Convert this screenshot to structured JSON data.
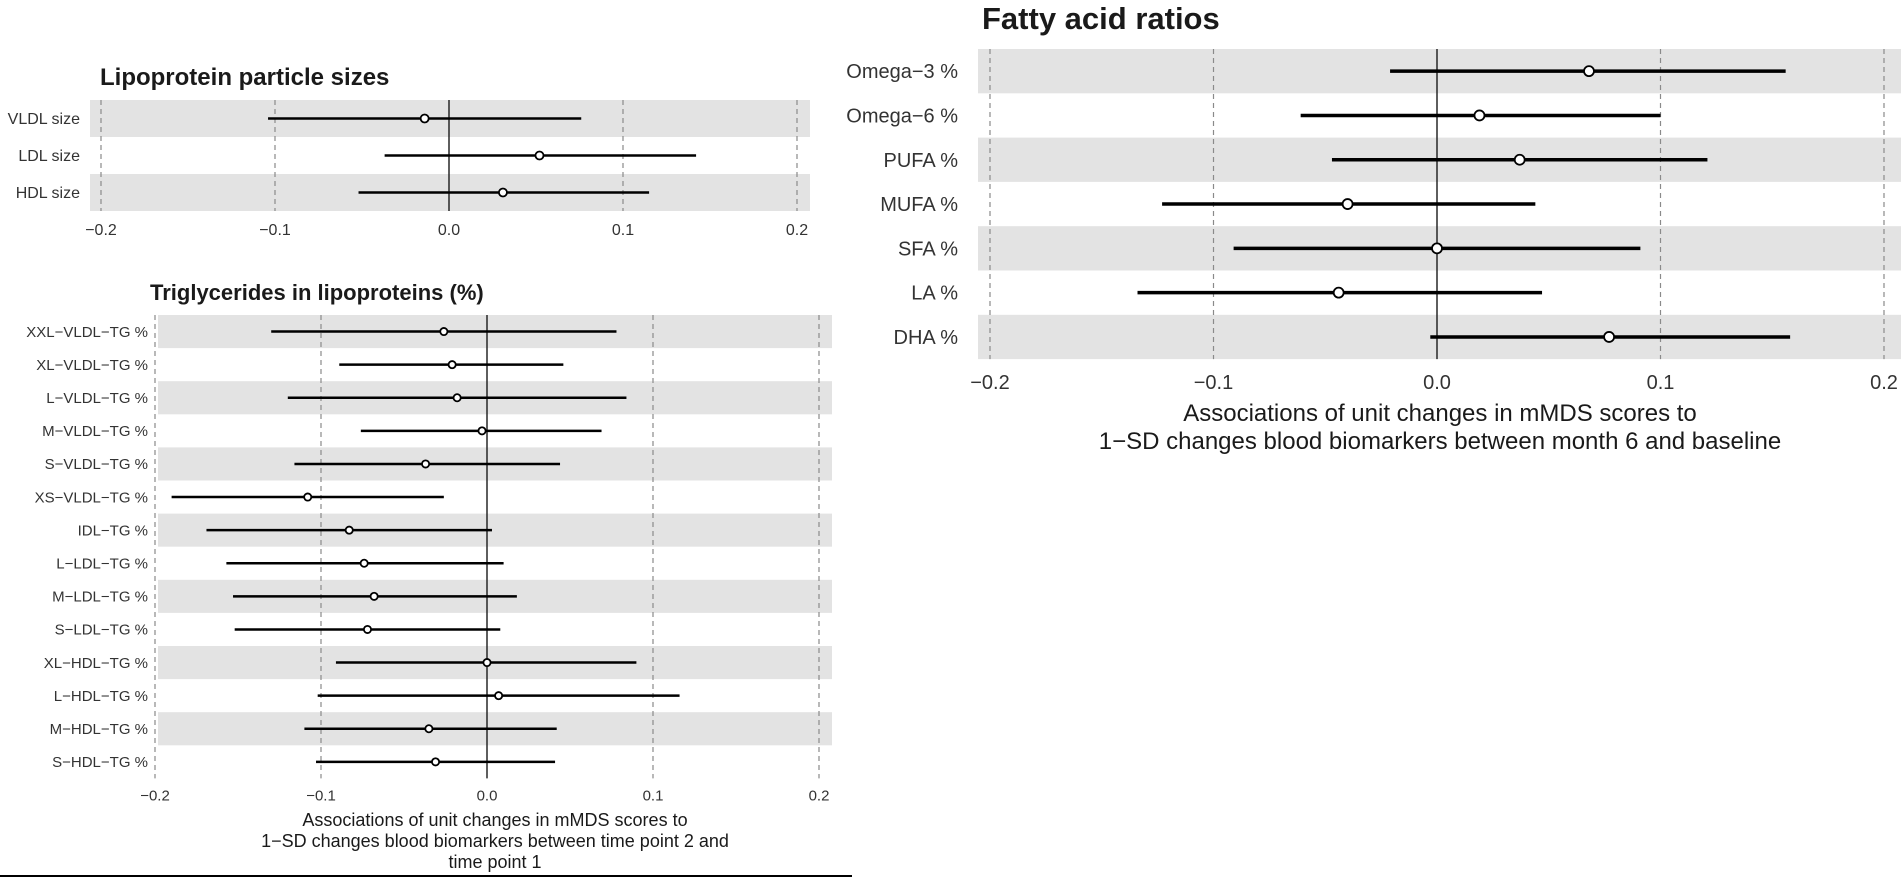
{
  "chart_data": [
    {
      "id": "lipoprotein_sizes",
      "type": "forest",
      "title": "Lipoprotein particle sizes",
      "xlabel": "",
      "xlim": [
        -0.21,
        0.21
      ],
      "xticks": [
        -0.2,
        -0.1,
        0.0,
        0.1,
        0.2
      ],
      "xtick_labels": [
        "−0.2",
        "−0.1",
        "0.0",
        "0.1",
        "0.2"
      ],
      "grid": "vertical dashed",
      "rows": [
        {
          "label": "VLDL size",
          "est": -0.014,
          "lo": -0.104,
          "hi": 0.076
        },
        {
          "label": "LDL size",
          "est": 0.052,
          "lo": -0.037,
          "hi": 0.142
        },
        {
          "label": "HDL size",
          "est": 0.031,
          "lo": -0.052,
          "hi": 0.115
        }
      ]
    },
    {
      "id": "tg_in_lipoproteins",
      "type": "forest",
      "title": "Triglycerides in lipoproteins (%)",
      "xlabel": "Associations of unit changes in mMDS scores to\n1−SD changes blood biomarkers between time point 2 and\ntime point 1",
      "xlim": [
        -0.21,
        0.21
      ],
      "xticks": [
        -0.2,
        -0.1,
        0.0,
        0.1,
        0.2
      ],
      "xtick_labels": [
        "−0.2",
        "−0.1",
        "0.0",
        "0.1",
        "0.2"
      ],
      "grid": "vertical dashed",
      "rows": [
        {
          "label": "XXL−VLDL−TG %",
          "est": -0.026,
          "lo": -0.13,
          "hi": 0.078
        },
        {
          "label": "XL−VLDL−TG %",
          "est": -0.021,
          "lo": -0.089,
          "hi": 0.046
        },
        {
          "label": "L−VLDL−TG %",
          "est": -0.018,
          "lo": -0.12,
          "hi": 0.084
        },
        {
          "label": "M−VLDL−TG %",
          "est": -0.003,
          "lo": -0.076,
          "hi": 0.069
        },
        {
          "label": "S−VLDL−TG %",
          "est": -0.037,
          "lo": -0.116,
          "hi": 0.044
        },
        {
          "label": "XS−VLDL−TG %",
          "est": -0.108,
          "lo": -0.19,
          "hi": -0.026
        },
        {
          "label": "IDL−TG %",
          "est": -0.083,
          "lo": -0.169,
          "hi": 0.003
        },
        {
          "label": "L−LDL−TG %",
          "est": -0.074,
          "lo": -0.157,
          "hi": 0.01
        },
        {
          "label": "M−LDL−TG %",
          "est": -0.068,
          "lo": -0.153,
          "hi": 0.018
        },
        {
          "label": "S−LDL−TG %",
          "est": -0.072,
          "lo": -0.152,
          "hi": 0.008
        },
        {
          "label": "XL−HDL−TG %",
          "est": 0.0,
          "lo": -0.091,
          "hi": 0.09
        },
        {
          "label": "L−HDL−TG %",
          "est": 0.007,
          "lo": -0.102,
          "hi": 0.116
        },
        {
          "label": "M−HDL−TG %",
          "est": -0.035,
          "lo": -0.11,
          "hi": 0.042
        },
        {
          "label": "S−HDL−TG %",
          "est": -0.031,
          "lo": -0.103,
          "hi": 0.041
        }
      ]
    },
    {
      "id": "fatty_acid_ratios",
      "type": "forest",
      "title": "Fatty acid ratios",
      "xlabel": "Associations of unit changes in mMDS scores to\n1−SD changes blood biomarkers between month 6 and baseline",
      "xlim": [
        -0.21,
        0.21
      ],
      "xticks": [
        -0.2,
        -0.1,
        0.0,
        0.1,
        0.2
      ],
      "xtick_labels": [
        "−0.2",
        "−0.1",
        "0.0",
        "0.1",
        "0.2"
      ],
      "grid": "vertical dashed",
      "rows": [
        {
          "label": "Omega−3 %",
          "est": 0.068,
          "lo": -0.021,
          "hi": 0.156
        },
        {
          "label": "Omega−6 %",
          "est": 0.019,
          "lo": -0.061,
          "hi": 0.1
        },
        {
          "label": "PUFA %",
          "est": 0.037,
          "lo": -0.047,
          "hi": 0.121
        },
        {
          "label": "MUFA %",
          "est": -0.04,
          "lo": -0.123,
          "hi": 0.044
        },
        {
          "label": "SFA %",
          "est": 0.0,
          "lo": -0.091,
          "hi": 0.091
        },
        {
          "label": "LA %",
          "est": -0.044,
          "lo": -0.134,
          "hi": 0.047
        },
        {
          "label": "DHA %",
          "est": 0.077,
          "lo": -0.003,
          "hi": 0.158
        }
      ]
    }
  ]
}
